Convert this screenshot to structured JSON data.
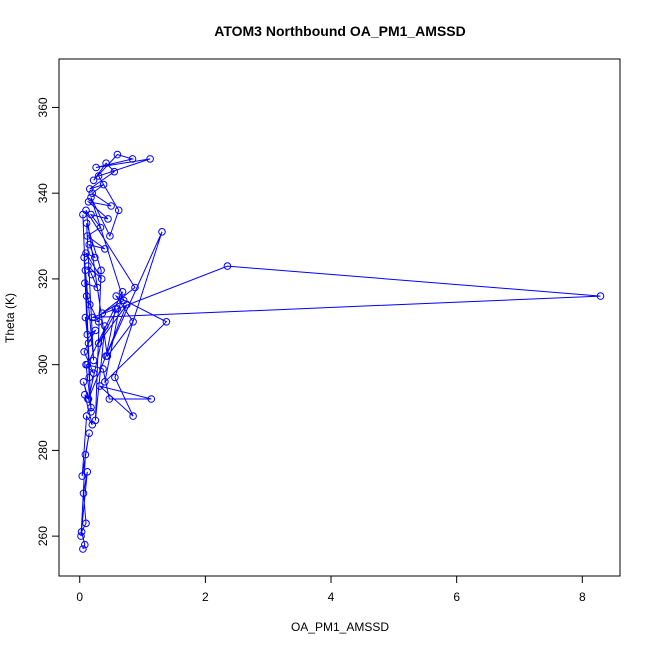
{
  "chart_data": {
    "type": "line",
    "title": "ATOM3 Northbound OA_PM1_AMSSD",
    "xlabel": "OA_PM1_AMSSD",
    "ylabel": "Theta (K)",
    "xlim": [
      -0.33,
      8.6
    ],
    "ylim": [
      250.7,
      371.3
    ],
    "xticks": [
      0,
      2,
      4,
      6,
      8
    ],
    "yticks": [
      260,
      280,
      300,
      320,
      340,
      360
    ],
    "xtick_labels": [
      "0",
      "2",
      "4",
      "6",
      "8"
    ],
    "ytick_labels": [
      "260",
      "280",
      "300",
      "320",
      "340",
      "360"
    ],
    "grid": false,
    "legend": "none",
    "color": "#0000ff",
    "series": [
      {
        "x": [
          0.05,
          0.08,
          0.03,
          0.1,
          0.06,
          0.12,
          0.02,
          0.09,
          0.15,
          0.04,
          0.11,
          0.2,
          0.08,
          0.13,
          0.06,
          0.18,
          0.1,
          0.22,
          0.07,
          0.14,
          0.25,
          0.12,
          0.09,
          0.3,
          0.16,
          0.11,
          0.08,
          0.28,
          0.19,
          0.13,
          0.35,
          0.1,
          0.24,
          0.15,
          0.4,
          0.12,
          0.33,
          0.18,
          0.45,
          0.14,
          0.5,
          0.2,
          0.38,
          0.16,
          0.55,
          0.42,
          0.22,
          0.6,
          0.84,
          0.26,
          1.12,
          0.3,
          0.62,
          0.48,
          0.18,
          0.7,
          0.36,
          0.88,
          0.1,
          0.44,
          0.85,
          0.58,
          1.38,
          0.4,
          0.68,
          0.12,
          0.37,
          0.47,
          1.14,
          0.32,
          0.85,
          0.56,
          1.31,
          0.42,
          0.57,
          0.2,
          8.29,
          2.35,
          0.6,
          0.3,
          0.75,
          0.14,
          0.4,
          0.25,
          0.34,
          0.11,
          0.22,
          0.09,
          0.18,
          0.07,
          0.15,
          0.05
        ],
        "y": [
          257,
          258,
          261,
          263,
          270,
          275,
          260,
          279,
          284,
          274,
          288,
          286,
          293,
          292,
          296,
          290,
          300,
          298,
          303,
          305,
          308,
          307,
          311,
          310,
          314,
          316,
          319,
          318,
          321,
          323,
          320,
          326,
          325,
          328,
          327,
          330,
          332,
          335,
          334,
          338,
          337,
          340,
          342,
          341,
          345,
          347,
          343,
          349,
          348,
          346,
          348,
          344,
          336,
          330,
          339,
          315,
          312,
          318,
          336,
          302,
          310,
          316,
          310,
          296,
          317,
          300,
          299,
          292,
          292,
          295,
          288,
          297,
          331,
          302,
          313,
          311,
          316,
          323,
          313,
          305,
          314,
          292,
          309,
          287,
          322,
          333,
          301,
          322,
          289,
          325,
          297,
          335
        ]
      }
    ]
  }
}
